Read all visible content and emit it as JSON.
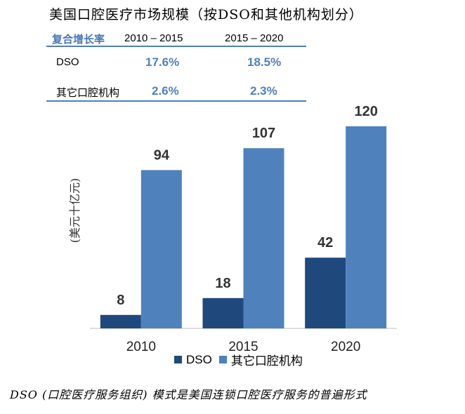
{
  "title": "美国口腔医疗市场规模（按DSO和其他机构划分）",
  "cagr_table": {
    "header": "复合增长率",
    "periods": [
      "2010 – 2015",
      "2015 – 2020"
    ],
    "rows": [
      {
        "label": "DSO",
        "values": [
          "17.6%",
          "18.5%"
        ]
      },
      {
        "label": "其它口腔机构",
        "values": [
          "2.6%",
          "2.3%"
        ]
      }
    ]
  },
  "footnote": "DSO (口腔医疗服务组织) 模式是美国连锁口腔医疗服务的普遍形式",
  "colors": {
    "dso": "#1f497d",
    "other": "#4f81bd",
    "accent": "#4a78b8"
  },
  "chart_data": {
    "type": "bar",
    "categories": [
      "2010",
      "2015",
      "2020"
    ],
    "series": [
      {
        "name": "DSO",
        "values": [
          8,
          18,
          42
        ]
      },
      {
        "name": "其它口腔机构",
        "values": [
          94,
          107,
          120
        ]
      }
    ],
    "ylabel": "(美元十亿元)",
    "ylim": [
      0,
      120
    ],
    "legend": "bottom",
    "grid": false
  }
}
